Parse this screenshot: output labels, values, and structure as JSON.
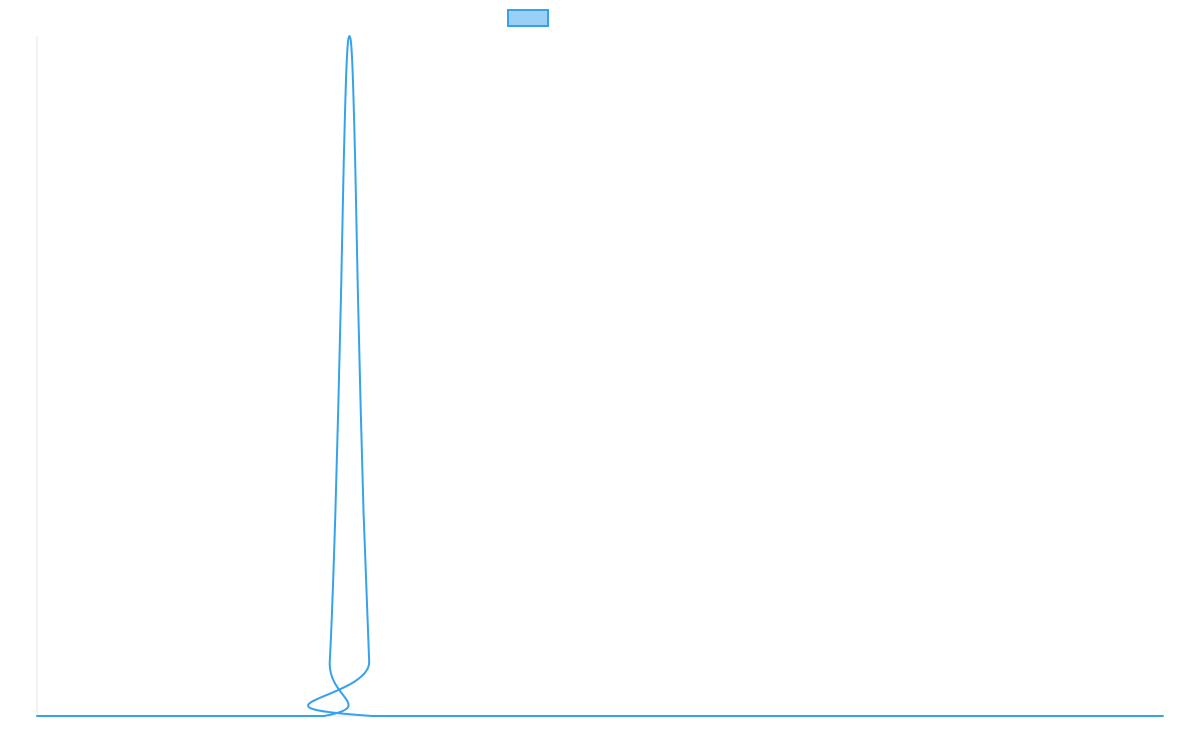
{
  "chart_data": {
    "type": "line",
    "title": "",
    "xlabel": "",
    "ylabel": "",
    "grid": false,
    "legend_position": "top-center",
    "x_range": [
      0,
      100
    ],
    "ylim": [
      0,
      1
    ],
    "series": [
      {
        "color": "#36a2eb",
        "fill": "#9ad0f5",
        "points": [
          [
            0,
            0
          ],
          [
            25.5,
            0
          ],
          [
            26.0,
            0.08
          ],
          [
            26.5,
            0.3
          ],
          [
            27.0,
            0.62
          ],
          [
            27.25,
            0.82
          ],
          [
            27.5,
            0.96
          ],
          [
            27.75,
            1.0
          ],
          [
            28.0,
            0.96
          ],
          [
            28.25,
            0.82
          ],
          [
            28.5,
            0.62
          ],
          [
            29.0,
            0.3
          ],
          [
            29.5,
            0.08
          ],
          [
            29.75,
            0
          ],
          [
            100,
            0
          ]
        ]
      }
    ]
  }
}
